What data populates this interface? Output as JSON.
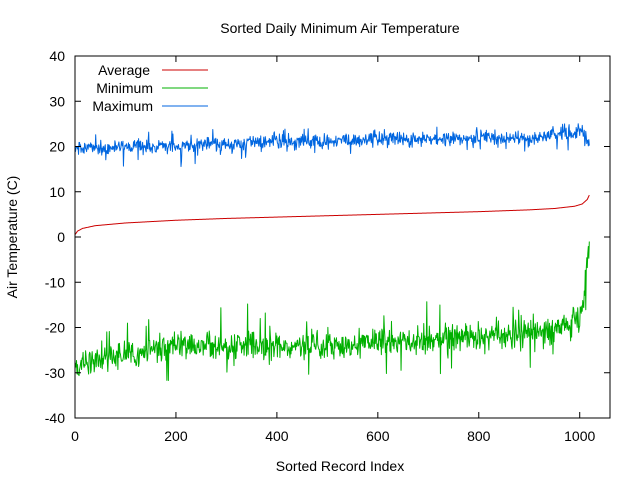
{
  "chart_data": {
    "type": "line",
    "title": "Sorted Daily Minimum Air Temperature",
    "xlabel": "Sorted Record Index",
    "ylabel": "Air Temperature (C)",
    "xlim": [
      0,
      1060
    ],
    "ylim": [
      -40,
      40
    ],
    "x_ticks": [
      0,
      200,
      400,
      600,
      800,
      1000
    ],
    "y_ticks": [
      -40,
      -30,
      -20,
      -10,
      0,
      10,
      20,
      30,
      40
    ],
    "grid": false,
    "legend_position": "top-left",
    "n_points": 1020,
    "series": [
      {
        "name": "Average",
        "color": "#cc0000",
        "trend_x": [
          0,
          5,
          15,
          40,
          100,
          200,
          300,
          400,
          500,
          600,
          700,
          800,
          900,
          950,
          990,
          1005,
          1015,
          1020
        ],
        "trend_y": [
          0.5,
          1.3,
          1.9,
          2.5,
          3.1,
          3.7,
          4.1,
          4.4,
          4.7,
          5.0,
          5.3,
          5.6,
          6.0,
          6.3,
          6.8,
          7.3,
          8.3,
          9.5
        ]
      },
      {
        "name": "Minimum",
        "color": "#00b000",
        "trend_x": [
          0,
          50,
          100,
          200,
          300,
          400,
          500,
          600,
          700,
          750,
          800,
          900,
          950,
          990,
          1005,
          1012,
          1018,
          1020
        ],
        "trend_y": [
          -29,
          -27,
          -26,
          -24,
          -24,
          -24,
          -24,
          -23,
          -23,
          -22,
          -22,
          -21,
          -20,
          -19,
          -16,
          -10,
          -2,
          2
        ]
      },
      {
        "name": "Maximum",
        "color": "#0066e0",
        "trend_x": [
          0,
          100,
          200,
          300,
          400,
          500,
          600,
          700,
          800,
          900,
          950,
          990,
          1005,
          1015,
          1020
        ],
        "trend_y": [
          19.5,
          20,
          20,
          20.5,
          21,
          21,
          21.5,
          21.5,
          22,
          22,
          22.5,
          23,
          23,
          22,
          19.5
        ]
      }
    ]
  }
}
